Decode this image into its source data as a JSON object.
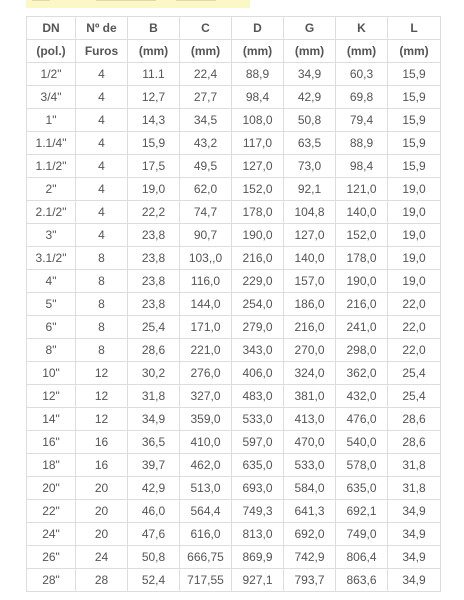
{
  "table": {
    "headers_row1": [
      "DN",
      "Nº de",
      "B",
      "C",
      "D",
      "G",
      "K",
      "L"
    ],
    "headers_row2": [
      "(pol.)",
      "Furos",
      "(mm)",
      "(mm)",
      "(mm)",
      "(mm)",
      "(mm)",
      "(mm)"
    ],
    "rows": [
      [
        "1/2\"",
        "4",
        "11.1",
        "22,4",
        "88,9",
        "34,9",
        "60,3",
        "15,9"
      ],
      [
        "3/4\"",
        "4",
        "12,7",
        "27,7",
        "98,4",
        "42,9",
        "69,8",
        "15,9"
      ],
      [
        "1\"",
        "4",
        "14,3",
        "34,5",
        "108,0",
        "50,8",
        "79,4",
        "15,9"
      ],
      [
        "1.1/4\"",
        "4",
        "15,9",
        "43,2",
        "117,0",
        "63,5",
        "88,9",
        "15,9"
      ],
      [
        "1.1/2\"",
        "4",
        "17,5",
        "49,5",
        "127,0",
        "73,0",
        "98,4",
        "15,9"
      ],
      [
        "2\"",
        "4",
        "19,0",
        "62,0",
        "152,0",
        "92,1",
        "121,0",
        "19,0"
      ],
      [
        "2.1/2\"",
        "4",
        "22,2",
        "74,7",
        "178,0",
        "104,8",
        "140,0",
        "19,0"
      ],
      [
        "3\"",
        "4",
        "23,8",
        "90,7",
        "190,0",
        "127,0",
        "152,0",
        "19,0"
      ],
      [
        "3.1/2\"",
        "8",
        "23,8",
        "103,,0",
        "216,0",
        "140,0",
        "178,0",
        "19,0"
      ],
      [
        "4\"",
        "8",
        "23,8",
        "116,0",
        "229,0",
        "157,0",
        "190,0",
        "19,0"
      ],
      [
        "5\"",
        "8",
        "23,8",
        "144,0",
        "254,0",
        "186,0",
        "216,0",
        "22,0"
      ],
      [
        "6\"",
        "8",
        "25,4",
        "171,0",
        "279,0",
        "216,0",
        "241,0",
        "22,0"
      ],
      [
        "8\"",
        "8",
        "28,6",
        "221,0",
        "343,0",
        "270,0",
        "298,0",
        "22,0"
      ],
      [
        "10\"",
        "12",
        "30,2",
        "276,0",
        "406,0",
        "324,0",
        "362,0",
        "25,4"
      ],
      [
        "12\"",
        "12",
        "31,8",
        "327,0",
        "483,0",
        "381,0",
        "432,0",
        "25,4"
      ],
      [
        "14\"",
        "12",
        "34,9",
        "359,0",
        "533,0",
        "413,0",
        "476,0",
        "28,6"
      ],
      [
        "16\"",
        "16",
        "36,5",
        "410,0",
        "597,0",
        "470,0",
        "540,0",
        "28,6"
      ],
      [
        "18\"",
        "16",
        "39,7",
        "462,0",
        "635,0",
        "533,0",
        "578,0",
        "31,8"
      ],
      [
        "20\"",
        "20",
        "42,9",
        "513,0",
        "693,0",
        "584,0",
        "635,0",
        "31,8"
      ],
      [
        "22\"",
        "20",
        "46,0",
        "564,4",
        "749,3",
        "641,3",
        "692,1",
        "34,9"
      ],
      [
        "24\"",
        "20",
        "47,6",
        "616,0",
        "813,0",
        "692,0",
        "749,0",
        "34,9"
      ],
      [
        "26\"",
        "24",
        "50,8",
        "666,75",
        "869,9",
        "742,9",
        "806,4",
        "34,9"
      ],
      [
        "28\"",
        "28",
        "52,4",
        "717,55",
        "927,1",
        "793,7",
        "863,6",
        "34,9"
      ]
    ]
  }
}
